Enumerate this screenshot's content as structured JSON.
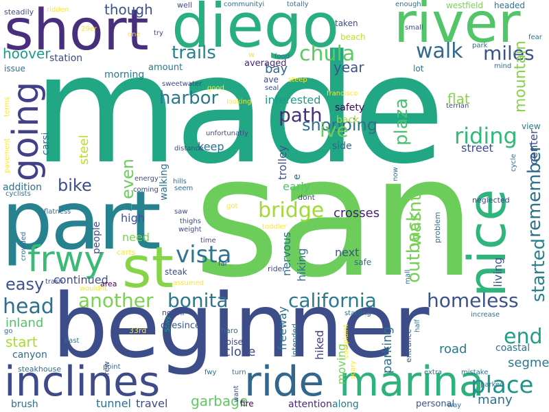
{
  "words": [
    {
      "text": "made",
      "color": "#22a784"
    },
    {
      "text": "san",
      "color": "#6ccd5a"
    },
    {
      "text": "beginner",
      "color": "#3d4d8a"
    },
    {
      "text": "part",
      "color": "#26828e"
    },
    {
      "text": "short",
      "color": "#472f7d"
    },
    {
      "text": "diego",
      "color": "#29af7f"
    },
    {
      "text": "river",
      "color": "#52c569"
    },
    {
      "text": "inclines",
      "color": "#3e4a89"
    },
    {
      "text": "ride",
      "color": "#31668e"
    },
    {
      "text": "marina",
      "color": "#2db27d"
    },
    {
      "text": "st",
      "color": "#86d549"
    },
    {
      "text": "frwy",
      "color": "#3aba76"
    },
    {
      "text": "going",
      "color": "#424086"
    },
    {
      "text": "nice",
      "color": "#2fb47c"
    },
    {
      "text": "bonita",
      "color": "#2a768e"
    },
    {
      "text": "california",
      "color": "#297a8e"
    },
    {
      "text": "homeless",
      "color": "#3b528b"
    },
    {
      "text": "another",
      "color": "#7ad151"
    },
    {
      "text": "vista",
      "color": "#2b758e"
    },
    {
      "text": "place",
      "color": "#20928c"
    },
    {
      "text": "walk",
      "color": "#31688e"
    },
    {
      "text": "trails",
      "color": "#26828e"
    },
    {
      "text": "chula",
      "color": "#5ec962"
    },
    {
      "text": "miles",
      "color": "#3b528b"
    },
    {
      "text": "riding",
      "color": "#35b779"
    },
    {
      "text": "bridge",
      "color": "#a0da39"
    },
    {
      "text": "harbor",
      "color": "#2a788e"
    },
    {
      "text": "head",
      "color": "#2e6f8e"
    },
    {
      "text": "easy",
      "color": "#3b528b"
    },
    {
      "text": "bike",
      "color": "#3e4c8a"
    },
    {
      "text": "end",
      "color": "#1f9f88"
    },
    {
      "text": "shopping",
      "color": "#4ac16d"
    },
    {
      "text": "ive",
      "color": "#6ccd5a"
    },
    {
      "text": "plaza",
      "color": "#7ad151"
    },
    {
      "text": "wasnt",
      "color": "#75d054"
    },
    {
      "text": "outback",
      "color": "#26828e"
    },
    {
      "text": "started",
      "color": "#2d708e"
    },
    {
      "text": "remember",
      "color": "#6ccd5a"
    },
    {
      "text": "even",
      "color": "#1f9a8a"
    },
    {
      "text": "hoover",
      "color": "#3b528b"
    },
    {
      "text": "though",
      "color": "#3b528b"
    },
    {
      "text": "year",
      "color": "#a8db34"
    },
    {
      "text": "start",
      "color": "#50c46a"
    },
    {
      "text": "inland",
      "color": "#2a788e"
    },
    {
      "text": "road",
      "color": "#3e4a89"
    },
    {
      "text": "close",
      "color": "#5ec962"
    },
    {
      "text": "garbage",
      "color": "#2c728e"
    },
    {
      "text": "many",
      "color": "#2a788e"
    },
    {
      "text": "segment",
      "color": "#2e6f8e"
    },
    {
      "text": "coastal",
      "color": "#3b528b"
    },
    {
      "text": "living",
      "color": "#482173"
    },
    {
      "text": "crosses",
      "color": "#2c728e"
    },
    {
      "text": "nervous",
      "color": "#2c728e"
    },
    {
      "text": "hiking",
      "color": "#2d708e"
    },
    {
      "text": "freeway",
      "color": "#424086"
    },
    {
      "text": "hiked",
      "color": "#2e6f8e"
    },
    {
      "text": "parking",
      "color": "#75d054"
    },
    {
      "text": "moving",
      "color": "#3b528b"
    },
    {
      "text": "next",
      "color": "#86d549"
    },
    {
      "text": "flat",
      "color": "#86d549"
    },
    {
      "text": "mountain",
      "color": "#3e4a89"
    },
    {
      "text": "center",
      "color": "#3e4989"
    },
    {
      "text": "street",
      "color": "#b8de29"
    },
    {
      "text": "steel",
      "color": "#2d708e"
    },
    {
      "text": "keep",
      "color": "#33638d"
    },
    {
      "text": "side",
      "color": "#440154"
    },
    {
      "text": "safety",
      "color": "#a0da39"
    },
    {
      "text": "back",
      "color": "#31688e"
    },
    {
      "text": "bay",
      "color": "#1f9a8a"
    },
    {
      "text": "interested",
      "color": "#2c728e"
    },
    {
      "text": "walking",
      "color": "#3b528b"
    },
    {
      "text": "trolley",
      "color": "#306a8e"
    },
    {
      "text": "e",
      "color": "#472d7b"
    },
    {
      "text": "path",
      "color": "#54c568"
    },
    {
      "text": "early",
      "color": "#3b528b"
    },
    {
      "text": "high",
      "color": "#7ad151"
    },
    {
      "text": "need",
      "color": "#3e4a89"
    },
    {
      "text": "continued",
      "color": "#2d708e"
    },
    {
      "text": "brush",
      "color": "#2e6f8e"
    },
    {
      "text": "tunnel",
      "color": "#3e4a89"
    },
    {
      "text": "travel",
      "color": "#482878"
    },
    {
      "text": "attention",
      "color": "#2a788e"
    },
    {
      "text": "along",
      "color": "#31688e"
    },
    {
      "text": "canyon",
      "color": "#3e4989"
    },
    {
      "text": "people",
      "color": "#2a788e"
    },
    {
      "text": "morning",
      "color": "#2e6f8e"
    },
    {
      "text": "addition",
      "color": "#2e6f8e"
    },
    {
      "text": "carsi",
      "color": "#3e4a89"
    },
    {
      "text": "station",
      "color": "#2e6f8e"
    },
    {
      "text": "issue",
      "color": "#2a788e"
    },
    {
      "text": "amount",
      "color": "#482878"
    },
    {
      "text": "averaged",
      "color": "#7ad151"
    },
    {
      "text": "westfield",
      "color": "#2d708e"
    },
    {
      "text": "headed",
      "color": "#3e4a89"
    },
    {
      "text": "taken",
      "color": "#bddf26"
    },
    {
      "text": "beach",
      "color": "#2e6f8e"
    },
    {
      "text": "lot",
      "color": "#2a788e"
    },
    {
      "text": "view",
      "color": "#3b528b"
    },
    {
      "text": "personal",
      "color": "#440154"
    },
    {
      "text": "fire",
      "color": "#440154"
    },
    {
      "text": "area",
      "color": "#3e4989"
    },
    {
      "text": "steak",
      "color": "#3e4989"
    },
    {
      "text": "want",
      "color": "#fde725"
    },
    {
      "text": "33rd",
      "color": "#1f9a8a"
    },
    {
      "text": "5fwy",
      "color": "#3e4a89"
    },
    {
      "text": "northi",
      "color": "#2e6f8e"
    },
    {
      "text": "haro",
      "color": "#3e4a89"
    },
    {
      "text": "noise",
      "color": "#3b528b"
    },
    {
      "text": "onesince",
      "color": "#2e6f8e"
    },
    {
      "text": "intended",
      "color": "#2a788e"
    },
    {
      "text": "turn",
      "color": "#2e6f8e"
    },
    {
      "text": "fwy",
      "color": "#2e6f8e"
    },
    {
      "text": "starting",
      "color": "#fde725"
    },
    {
      "text": "complaint",
      "color": "#fde725"
    },
    {
      "text": "scary",
      "color": "#3b528b"
    },
    {
      "text": "entrance",
      "color": "#2e6f8e"
    },
    {
      "text": "extra",
      "color": "#2e6f8e"
    },
    {
      "text": "mistake",
      "color": "#2e6f8e"
    },
    {
      "text": "parked",
      "color": "#2e6f8e"
    },
    {
      "text": "way",
      "color": "#2e6f8e"
    },
    {
      "text": "increase",
      "color": "#2e6f8e"
    },
    {
      "text": "half",
      "color": "#2e6f8e"
    },
    {
      "text": "mall",
      "color": "#3e4a89"
    },
    {
      "text": "dont",
      "color": "#3e4989"
    },
    {
      "text": "neglected",
      "color": "#2e6f8e"
    },
    {
      "text": "problem",
      "color": "#2e6f8e"
    },
    {
      "text": "now",
      "color": "#2e6f8e"
    },
    {
      "text": "cycle",
      "color": "#2e6f8e"
    },
    {
      "text": "mind",
      "color": "#3e4989"
    },
    {
      "text": "seal",
      "color": "#3e4a89"
    },
    {
      "text": "ave",
      "color": "#fde725"
    },
    {
      "text": "steep",
      "color": "#fde725"
    },
    {
      "text": "good",
      "color": "#fde725"
    },
    {
      "text": "looking",
      "color": "#fde725"
    },
    {
      "text": "francisco",
      "color": "#3e4a89"
    },
    {
      "text": "terrian",
      "color": "#3e4a89"
    },
    {
      "text": "unfortunatly",
      "color": "#3e4989"
    },
    {
      "text": "distance",
      "color": "#2e6f8e"
    },
    {
      "text": "hills",
      "color": "#2e6f8e"
    },
    {
      "text": "seem",
      "color": "#3e4989"
    },
    {
      "text": "energy",
      "color": "#3e4989"
    },
    {
      "text": "coming",
      "color": "#3e4989"
    },
    {
      "text": "saw",
      "color": "#3e4989"
    },
    {
      "text": "thighs",
      "color": "#3e4989"
    },
    {
      "text": "weight",
      "color": "#fde725"
    },
    {
      "text": "got",
      "color": "#3e4989"
    },
    {
      "text": "time",
      "color": "#fde725"
    },
    {
      "text": "toddler",
      "color": "#3e4989"
    },
    {
      "text": "far",
      "color": "#2e6f8e"
    },
    {
      "text": "safe",
      "color": "#fde725"
    },
    {
      "text": "assumed",
      "color": "#3e4989"
    },
    {
      "text": "rider",
      "color": "#fde725"
    },
    {
      "text": "wouldnt",
      "color": "#3e4989"
    },
    {
      "text": "trash",
      "color": "#fde725"
    },
    {
      "text": "carts",
      "color": "#2e6f8e"
    },
    {
      "text": "crowded",
      "color": "#2e6f8e"
    },
    {
      "text": "flatness",
      "color": "#2e6f8e"
    },
    {
      "text": "cyclists",
      "color": "#fde725"
    },
    {
      "text": "pavement",
      "color": "#fde725"
    },
    {
      "text": "terms",
      "color": "#3e4989"
    },
    {
      "text": "steadily",
      "color": "#fde725"
    },
    {
      "text": "ridden",
      "color": "#3e4989"
    },
    {
      "text": "well",
      "color": "#2e6f8e"
    },
    {
      "text": "communityi",
      "color": "#2e6f8e"
    },
    {
      "text": "totally",
      "color": "#2e6f8e"
    },
    {
      "text": "enough",
      "color": "#3e4989"
    },
    {
      "text": "small",
      "color": "#2e6f8e"
    },
    {
      "text": "park",
      "color": "#2e6f8e"
    },
    {
      "text": "fear",
      "color": "#2e6f8e"
    },
    {
      "text": "food",
      "color": "#3e4989"
    },
    {
      "text": "try",
      "color": "#fde725"
    },
    {
      "text": "one",
      "color": "#fde725"
    },
    {
      "text": "w",
      "color": "#fde725"
    },
    {
      "text": "29er",
      "color": "#3e4989"
    },
    {
      "text": "sweetwater",
      "color": "#3e4989"
    },
    {
      "text": "frew",
      "color": "#2e6f8e"
    },
    {
      "text": "point",
      "color": "#2e6f8e"
    },
    {
      "text": "east",
      "color": "#2e6f8e"
    },
    {
      "text": "steakhouse",
      "color": "#2e6f8e"
    },
    {
      "text": "go",
      "color": "#fde725"
    }
  ]
}
